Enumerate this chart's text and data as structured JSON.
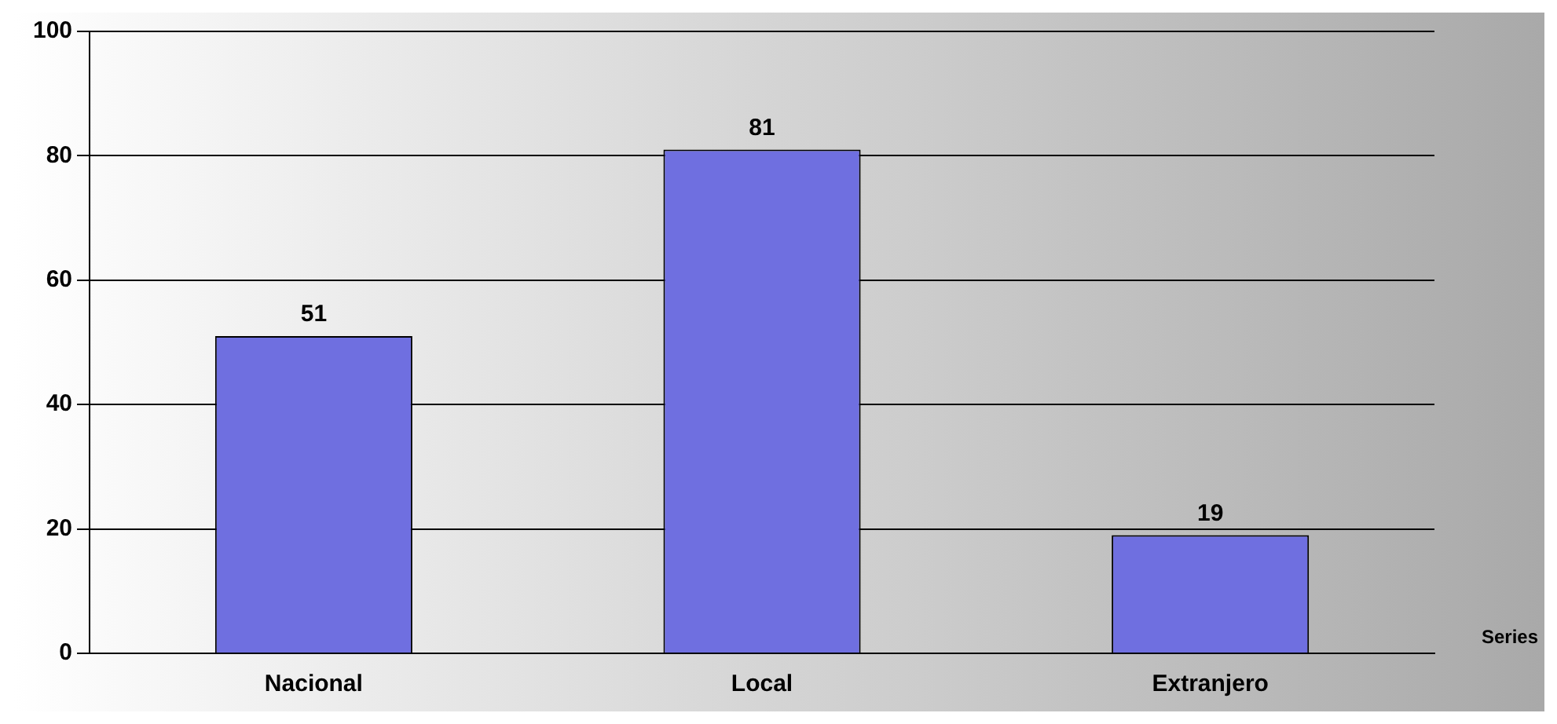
{
  "chart_data": {
    "type": "bar",
    "categories": [
      "Nacional",
      "Local",
      "Extranjero"
    ],
    "values": [
      51,
      81,
      19
    ],
    "color": "#6f6fe0",
    "ylim": [
      0,
      100
    ],
    "yticks": [
      0,
      20,
      40,
      60,
      80,
      100
    ],
    "grid": "y",
    "data_labels": true,
    "annotations": [
      "Series"
    ]
  }
}
